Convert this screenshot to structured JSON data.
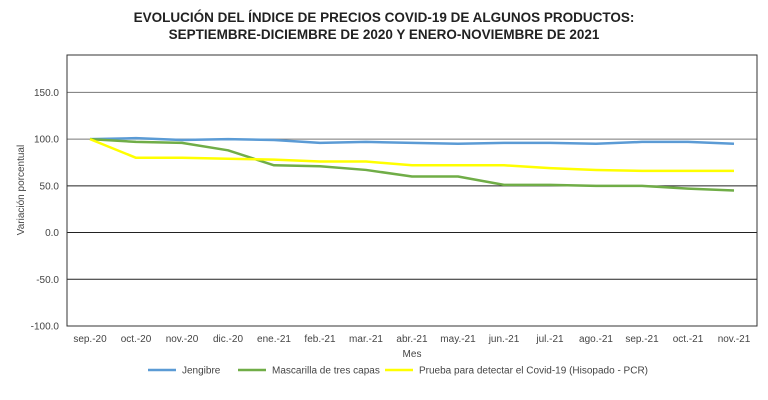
{
  "chart_data": {
    "type": "line",
    "title_line1": "EVOLUCIÓN DEL ÍNDICE DE PRECIOS COVID-19 DE ALGUNOS PRODUCTOS:",
    "title_line2": "SEPTIEMBRE-DICIEMBRE DE 2020 Y ENERO-NOVIEMBRE DE 2021",
    "xlabel": "Mes",
    "ylabel": "Variación porcentual",
    "ylim": [
      -100,
      190
    ],
    "yticks": [
      -100,
      -50,
      0,
      50,
      100,
      150
    ],
    "ytick_labels": [
      "-100.0",
      "-50.0",
      "0.0",
      "50.0",
      "100.0",
      "150.0"
    ],
    "grid": true,
    "legend_position": "bottom",
    "categories": [
      "sep.-20",
      "oct.-20",
      "nov.-20",
      "dic.-20",
      "ene.-21",
      "feb.-21",
      "mar.-21",
      "abr.-21",
      "may.-21",
      "jun.-21",
      "jul.-21",
      "ago.-21",
      "sep.-21",
      "oct.-21",
      "nov.-21"
    ],
    "series": [
      {
        "name": "Jengibre",
        "color": "#5b9bd5",
        "values": [
          100,
          101,
          99,
          100,
          99,
          96,
          97,
          96,
          95,
          96,
          96,
          95,
          97,
          97,
          95
        ]
      },
      {
        "name": "Mascarilla de tres capas",
        "color": "#70ad47",
        "values": [
          100,
          97,
          96,
          88,
          72,
          71,
          67,
          60,
          60,
          51,
          51,
          50,
          50,
          47,
          45
        ]
      },
      {
        "name": "Prueba para detectar el Covid-19 (Hisopado - PCR)",
        "color": "#ffff00",
        "values": [
          100,
          80,
          80,
          79,
          78,
          76,
          76,
          72,
          72,
          72,
          69,
          67,
          66,
          66,
          66
        ]
      }
    ]
  }
}
